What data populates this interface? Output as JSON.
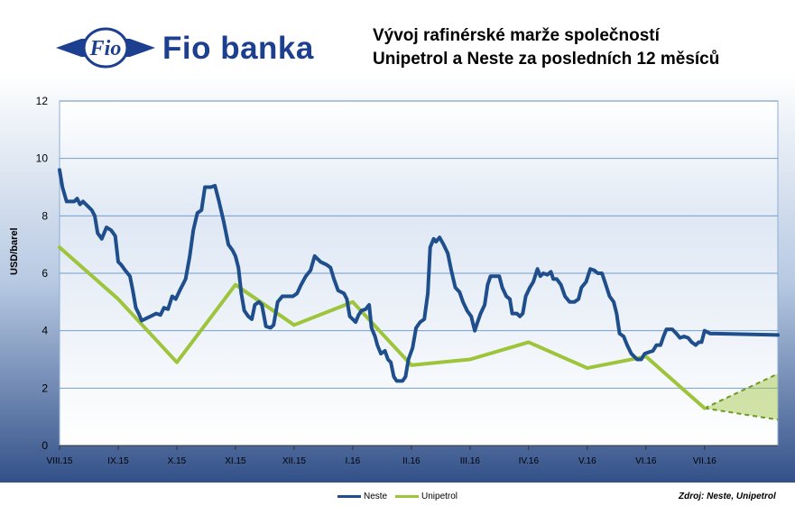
{
  "header": {
    "brand_name": "Fio banka",
    "logo_text": "Fio",
    "title_line1": "Vývoj rafinérské marže společností",
    "title_line2": "Unipetrol a Neste za posledních 12 měsíců"
  },
  "footer": {
    "source": "Zdroj: Neste, Unipetrol"
  },
  "colors": {
    "neste": "#1f4e8c",
    "unipetrol": "#9dc43b",
    "brand": "#1c3f8f",
    "grid": "#4f81bd"
  },
  "chart_data": {
    "type": "line",
    "title": "Vývoj rafinérské marže společností Unipetrol a Neste za posledních 12 měsíců",
    "ylabel": "USD/barel",
    "xlabel": "",
    "ylim": [
      0,
      12
    ],
    "yticks": [
      0,
      2,
      4,
      6,
      8,
      10,
      12
    ],
    "xlim": [
      0,
      12.25
    ],
    "categories": [
      "VIII.15",
      "IX.15",
      "X.15",
      "XI.15",
      "XII.15",
      "I.16",
      "II.16",
      "III.16",
      "IV.16",
      "V.16",
      "VI.16",
      "VII.16"
    ],
    "grid": true,
    "legend_position": "bottom",
    "series": [
      {
        "name": "Neste",
        "color": "#1f4e8c",
        "points": [
          [
            0.0,
            9.6
          ],
          [
            0.05,
            9.0
          ],
          [
            0.12,
            8.5
          ],
          [
            0.25,
            8.5
          ],
          [
            0.3,
            8.6
          ],
          [
            0.35,
            8.4
          ],
          [
            0.4,
            8.5
          ],
          [
            0.5,
            8.3
          ],
          [
            0.55,
            8.2
          ],
          [
            0.6,
            8.0
          ],
          [
            0.65,
            7.4
          ],
          [
            0.72,
            7.2
          ],
          [
            0.8,
            7.6
          ],
          [
            0.88,
            7.5
          ],
          [
            0.95,
            7.3
          ],
          [
            1.0,
            6.4
          ],
          [
            1.05,
            6.3
          ],
          [
            1.12,
            6.1
          ],
          [
            1.2,
            5.9
          ],
          [
            1.25,
            5.4
          ],
          [
            1.3,
            4.8
          ],
          [
            1.35,
            4.6
          ],
          [
            1.4,
            4.35
          ],
          [
            1.45,
            4.4
          ],
          [
            1.55,
            4.5
          ],
          [
            1.65,
            4.6
          ],
          [
            1.72,
            4.55
          ],
          [
            1.78,
            4.8
          ],
          [
            1.85,
            4.75
          ],
          [
            1.92,
            5.2
          ],
          [
            1.98,
            5.1
          ],
          [
            2.05,
            5.4
          ],
          [
            2.1,
            5.6
          ],
          [
            2.15,
            5.8
          ],
          [
            2.22,
            6.6
          ],
          [
            2.28,
            7.5
          ],
          [
            2.35,
            8.1
          ],
          [
            2.42,
            8.2
          ],
          [
            2.48,
            9.0
          ],
          [
            2.58,
            9.0
          ],
          [
            2.65,
            9.05
          ],
          [
            2.72,
            8.5
          ],
          [
            2.8,
            7.8
          ],
          [
            2.88,
            7.0
          ],
          [
            2.95,
            6.8
          ],
          [
            3.0,
            6.6
          ],
          [
            3.05,
            6.2
          ],
          [
            3.1,
            5.3
          ],
          [
            3.15,
            4.7
          ],
          [
            3.22,
            4.5
          ],
          [
            3.28,
            4.4
          ],
          [
            3.33,
            4.9
          ],
          [
            3.4,
            5.0
          ],
          [
            3.45,
            4.9
          ],
          [
            3.52,
            4.15
          ],
          [
            3.6,
            4.1
          ],
          [
            3.65,
            4.2
          ],
          [
            3.72,
            5.0
          ],
          [
            3.8,
            5.2
          ],
          [
            3.9,
            5.2
          ],
          [
            3.98,
            5.2
          ],
          [
            4.05,
            5.3
          ],
          [
            4.12,
            5.6
          ],
          [
            4.2,
            5.9
          ],
          [
            4.28,
            6.1
          ],
          [
            4.35,
            6.6
          ],
          [
            4.4,
            6.5
          ],
          [
            4.45,
            6.4
          ],
          [
            4.55,
            6.3
          ],
          [
            4.62,
            6.2
          ],
          [
            4.68,
            5.8
          ],
          [
            4.75,
            5.4
          ],
          [
            4.85,
            5.3
          ],
          [
            4.9,
            5.1
          ],
          [
            4.95,
            4.5
          ],
          [
            5.0,
            4.4
          ],
          [
            5.05,
            4.3
          ],
          [
            5.1,
            4.55
          ],
          [
            5.15,
            4.7
          ],
          [
            5.22,
            4.75
          ],
          [
            5.28,
            4.9
          ],
          [
            5.32,
            4.1
          ],
          [
            5.38,
            3.8
          ],
          [
            5.42,
            3.5
          ],
          [
            5.48,
            3.2
          ],
          [
            5.55,
            3.3
          ],
          [
            5.6,
            3.0
          ],
          [
            5.65,
            2.9
          ],
          [
            5.7,
            2.4
          ],
          [
            5.75,
            2.25
          ],
          [
            5.85,
            2.25
          ],
          [
            5.9,
            2.4
          ],
          [
            5.95,
            3.0
          ],
          [
            6.02,
            3.4
          ],
          [
            6.08,
            4.1
          ],
          [
            6.15,
            4.3
          ],
          [
            6.22,
            4.4
          ],
          [
            6.28,
            5.3
          ],
          [
            6.32,
            6.9
          ],
          [
            6.38,
            7.2
          ],
          [
            6.42,
            7.1
          ],
          [
            6.48,
            7.25
          ],
          [
            6.55,
            7.0
          ],
          [
            6.62,
            6.7
          ],
          [
            6.68,
            6.1
          ],
          [
            6.75,
            5.5
          ],
          [
            6.82,
            5.35
          ],
          [
            6.88,
            5.0
          ],
          [
            6.95,
            4.7
          ],
          [
            7.02,
            4.5
          ],
          [
            7.08,
            4.0
          ],
          [
            7.12,
            4.25
          ],
          [
            7.18,
            4.6
          ],
          [
            7.25,
            4.9
          ],
          [
            7.3,
            5.6
          ],
          [
            7.35,
            5.9
          ],
          [
            7.45,
            5.9
          ],
          [
            7.5,
            5.9
          ],
          [
            7.55,
            5.5
          ],
          [
            7.62,
            5.2
          ],
          [
            7.68,
            5.1
          ],
          [
            7.72,
            4.6
          ],
          [
            7.8,
            4.6
          ],
          [
            7.85,
            4.5
          ],
          [
            7.9,
            4.6
          ],
          [
            7.95,
            5.2
          ],
          [
            8.02,
            5.5
          ],
          [
            8.08,
            5.7
          ],
          [
            8.15,
            6.15
          ],
          [
            8.2,
            5.9
          ],
          [
            8.25,
            6.0
          ],
          [
            8.32,
            5.95
          ],
          [
            8.38,
            6.05
          ],
          [
            8.42,
            5.8
          ],
          [
            8.48,
            5.8
          ],
          [
            8.55,
            5.6
          ],
          [
            8.62,
            5.2
          ],
          [
            8.7,
            5.0
          ],
          [
            8.78,
            5.0
          ],
          [
            8.85,
            5.1
          ],
          [
            8.9,
            5.5
          ],
          [
            8.98,
            5.7
          ],
          [
            9.05,
            6.15
          ],
          [
            9.12,
            6.1
          ],
          [
            9.18,
            6.0
          ],
          [
            9.25,
            6.0
          ],
          [
            9.3,
            5.7
          ],
          [
            9.38,
            5.2
          ],
          [
            9.45,
            5.0
          ],
          [
            9.5,
            4.6
          ],
          [
            9.55,
            3.9
          ],
          [
            9.62,
            3.8
          ],
          [
            9.68,
            3.5
          ],
          [
            9.75,
            3.2
          ],
          [
            9.85,
            3.0
          ],
          [
            9.92,
            3.0
          ],
          [
            9.98,
            3.2
          ],
          [
            10.05,
            3.25
          ],
          [
            10.12,
            3.3
          ],
          [
            10.18,
            3.5
          ],
          [
            10.25,
            3.5
          ],
          [
            10.3,
            3.8
          ],
          [
            10.35,
            4.05
          ],
          [
            10.45,
            4.05
          ],
          [
            10.52,
            3.9
          ],
          [
            10.58,
            3.75
          ],
          [
            10.65,
            3.8
          ],
          [
            10.72,
            3.75
          ],
          [
            10.78,
            3.6
          ],
          [
            10.85,
            3.5
          ],
          [
            10.9,
            3.6
          ],
          [
            10.95,
            3.6
          ],
          [
            11.0,
            4.0
          ],
          [
            11.05,
            3.95
          ],
          [
            11.1,
            3.9
          ],
          [
            11.2,
            3.9
          ],
          [
            12.25,
            3.85
          ]
        ]
      },
      {
        "name": "Unipetrol",
        "color": "#9dc43b",
        "points": [
          [
            0.0,
            6.9
          ],
          [
            1.0,
            5.1
          ],
          [
            2.0,
            2.9
          ],
          [
            3.0,
            5.6
          ],
          [
            4.0,
            4.2
          ],
          [
            5.0,
            5.0
          ],
          [
            6.0,
            2.8
          ],
          [
            7.0,
            3.0
          ],
          [
            8.0,
            3.6
          ],
          [
            9.0,
            2.7
          ],
          [
            10.0,
            3.1
          ],
          [
            11.0,
            1.3
          ]
        ]
      }
    ],
    "projection": {
      "from": [
        11.0,
        1.3
      ],
      "upper": [
        12.25,
        2.5
      ],
      "lower": [
        12.25,
        0.9
      ],
      "color": "#9dc43b"
    }
  }
}
